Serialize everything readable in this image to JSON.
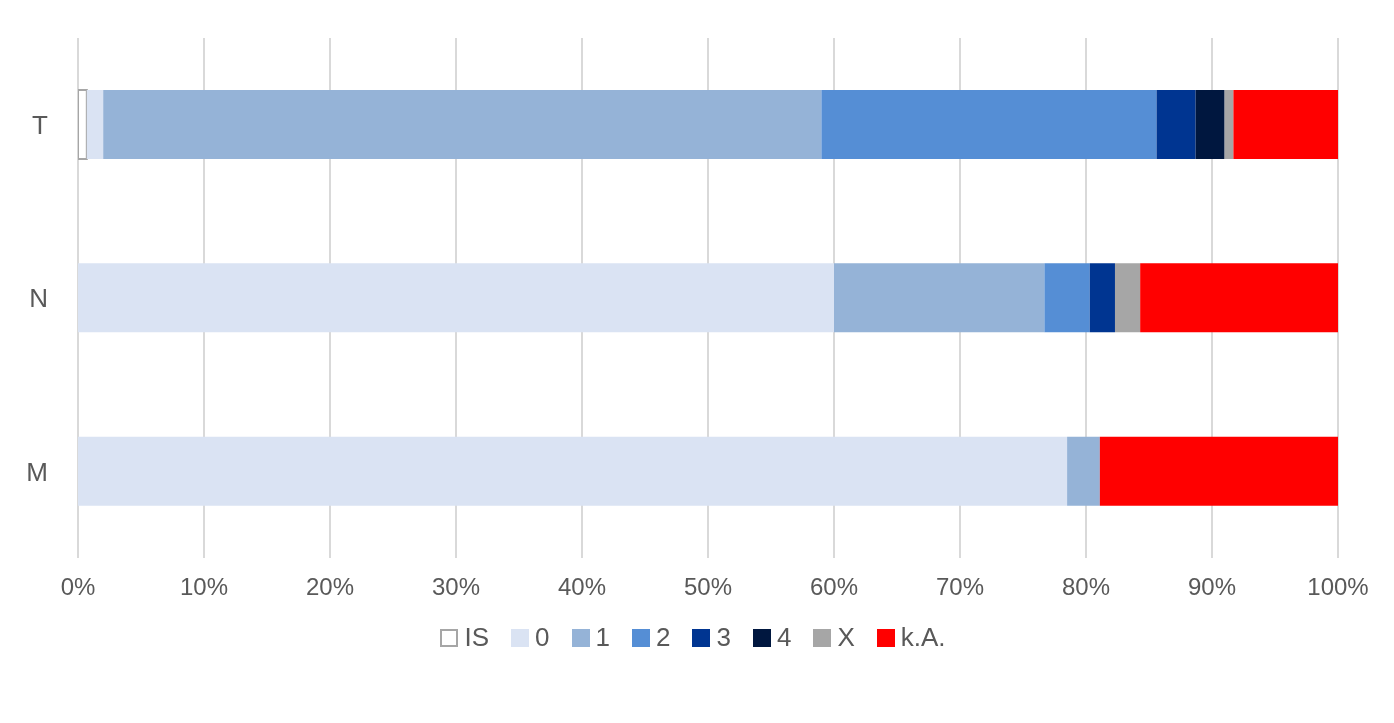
{
  "chart_data": {
    "type": "bar",
    "orientation": "horizontal",
    "stacked": true,
    "categories": [
      "T",
      "N",
      "M"
    ],
    "series": [
      {
        "name": "IS",
        "color": "#ffffff",
        "values": [
          0.7,
          0,
          0
        ]
      },
      {
        "name": "0",
        "color": "#dae3f3",
        "values": [
          1.3,
          60.0,
          78.5
        ]
      },
      {
        "name": "1",
        "color": "#95b3d7",
        "values": [
          57.0,
          16.7,
          2.6
        ]
      },
      {
        "name": "2",
        "color": "#558ed5",
        "values": [
          26.6,
          3.6,
          0
        ]
      },
      {
        "name": "3",
        "color": "#003591",
        "values": [
          3.1,
          2.0,
          0
        ]
      },
      {
        "name": "4",
        "color": "#00173f",
        "values": [
          2.3,
          0,
          0
        ]
      },
      {
        "name": "X",
        "color": "#a6a6a6",
        "values": [
          0.7,
          2.0,
          0
        ]
      },
      {
        "name": "k.A.",
        "color": "#ff0000",
        "values": [
          8.3,
          15.7,
          18.9
        ]
      }
    ],
    "xlim": [
      0,
      100
    ],
    "xticks": [
      {
        "value": 0,
        "label": "0%"
      },
      {
        "value": 10,
        "label": "10%"
      },
      {
        "value": 20,
        "label": "20%"
      },
      {
        "value": 30,
        "label": "30%"
      },
      {
        "value": 40,
        "label": "40%"
      },
      {
        "value": 50,
        "label": "50%"
      },
      {
        "value": 60,
        "label": "60%"
      },
      {
        "value": 70,
        "label": "70%"
      },
      {
        "value": 80,
        "label": "80%"
      },
      {
        "value": 90,
        "label": "90%"
      },
      {
        "value": 100,
        "label": "100%"
      }
    ],
    "grid": "x",
    "legend": "bottom"
  }
}
